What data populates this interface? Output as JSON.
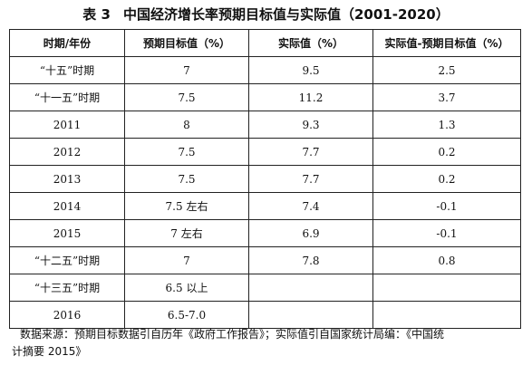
{
  "title": {
    "label": "表 3",
    "text": "中国经济增长率预期目标值与实际值（2001-2020）"
  },
  "table": {
    "headers": [
      "时期/年份",
      "预期目标值（%）",
      "实际值（%）",
      "实际值-预期目标值（%）"
    ],
    "rows": [
      [
        "“十五”时期",
        "7",
        "9.5",
        "2.5"
      ],
      [
        "“十一五”时期",
        "7.5",
        "11.2",
        "3.7"
      ],
      [
        "2011",
        "8",
        "9.3",
        "1.3"
      ],
      [
        "2012",
        "7.5",
        "7.7",
        "0.2"
      ],
      [
        "2013",
        "7.5",
        "7.7",
        "0.2"
      ],
      [
        "2014",
        "7.5 左右",
        "7.4",
        "-0.1"
      ],
      [
        "2015",
        "7 左右",
        "6.9",
        "-0.1"
      ],
      [
        "“十二五”时期",
        "7",
        "7.8",
        "0.8"
      ],
      [
        "“十三五”时期",
        "6.5 以上",
        "",
        ""
      ],
      [
        "2016",
        "6.5-7.0",
        "",
        ""
      ]
    ]
  },
  "source": {
    "line1": "数据来源：预期目标数据引自历年《政府工作报告》；实际值引自国家统计局编：《中国统",
    "line2": "计摘要 2015》"
  }
}
